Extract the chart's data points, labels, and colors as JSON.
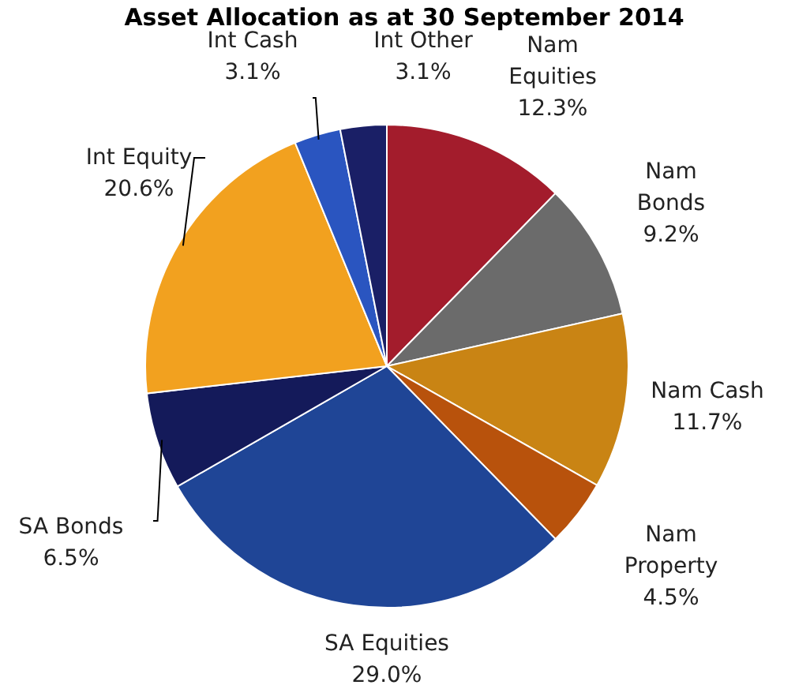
{
  "chart_data": {
    "type": "pie",
    "title": "Asset Allocation as at 30 September 2014",
    "categories": [
      "Nam Equities",
      "Nam Bonds",
      "Nam Cash",
      "Nam Property",
      "SA Equities",
      "SA Bonds",
      "Int Equity",
      "Int Cash",
      "Int Other"
    ],
    "values": [
      12.3,
      9.2,
      11.7,
      4.5,
      29.0,
      6.5,
      20.6,
      3.1,
      3.1
    ],
    "colors": [
      "#a31c2c",
      "#6b6b6b",
      "#c98414",
      "#b8520c",
      "#1f4596",
      "#141a5a",
      "#f2a11f",
      "#2a55c0",
      "#1a1f66"
    ],
    "value_labels": [
      "12.3%",
      "9.2%",
      "11.7%",
      "4.5%",
      "29.0%",
      "6.5%",
      "20.6%",
      "3.1%",
      "3.1%"
    ]
  }
}
